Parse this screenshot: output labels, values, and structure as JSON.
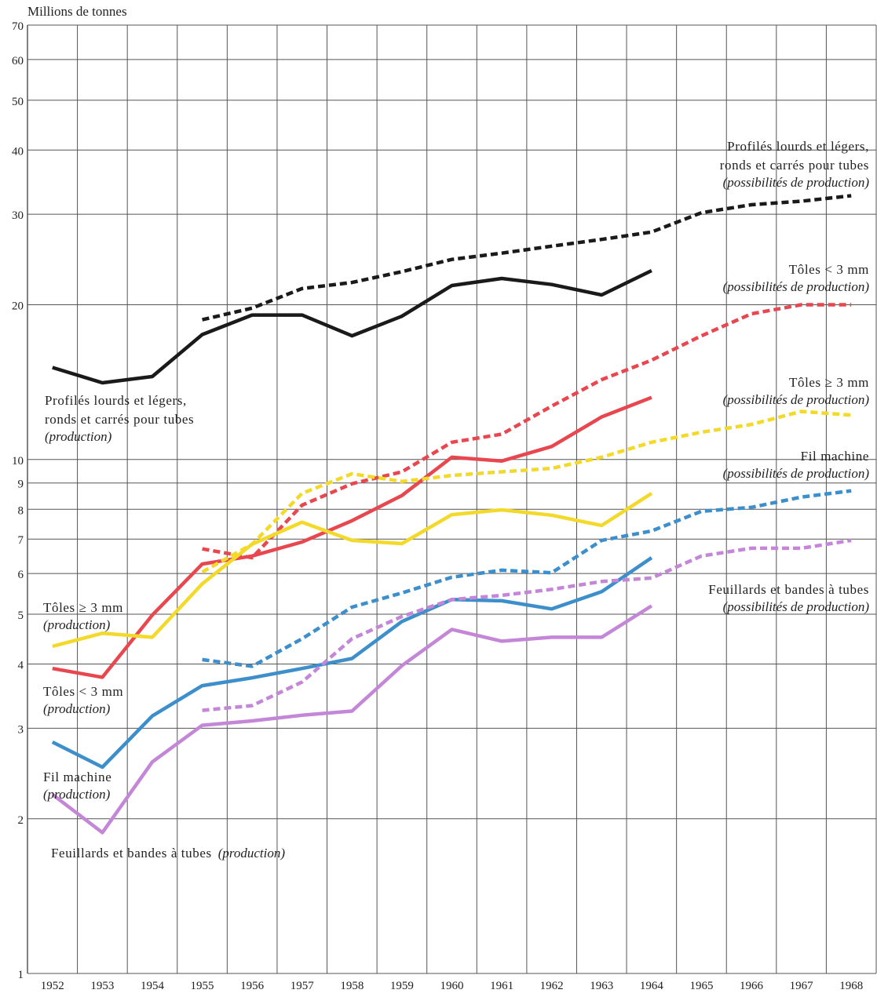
{
  "chart_data": {
    "type": "line",
    "y_label": "Millions de tonnes",
    "log_y": true,
    "grid": true,
    "ylim": [
      1,
      70
    ],
    "yticks": [
      1,
      2,
      3,
      4,
      5,
      6,
      7,
      8,
      9,
      10,
      20,
      30,
      40,
      50,
      60,
      70
    ],
    "categories": [
      "1952",
      "1953",
      "1954",
      "1955",
      "1956",
      "1957",
      "1958",
      "1959",
      "1960",
      "1961",
      "1962",
      "1963",
      "1964",
      "1965",
      "1966",
      "1967",
      "1968"
    ],
    "series": [
      {
        "color": "#1a1a1a",
        "dashed": false,
        "values": [
          15.1,
          14.1,
          14.5,
          17.5,
          19.1,
          19.1,
          17.4,
          19.0,
          21.8,
          22.5,
          21.9,
          20.9,
          23.3,
          null,
          null,
          null,
          null
        ]
      },
      {
        "color": "#1a1a1a",
        "dashed": true,
        "values": [
          null,
          null,
          null,
          18.7,
          19.7,
          21.5,
          22.1,
          23.2,
          24.5,
          25.2,
          26.0,
          26.8,
          27.7,
          30.2,
          31.3,
          31.8,
          32.6
        ]
      },
      {
        "color": "#e8474f",
        "dashed": false,
        "values": [
          3.92,
          3.77,
          4.98,
          6.26,
          6.49,
          6.91,
          7.6,
          8.51,
          10.1,
          9.93,
          10.6,
          12.1,
          13.2,
          null,
          null,
          null,
          null
        ]
      },
      {
        "color": "#e8474f",
        "dashed": true,
        "values": [
          null,
          null,
          null,
          6.7,
          6.44,
          8.15,
          8.97,
          9.46,
          10.8,
          11.2,
          12.7,
          14.3,
          15.6,
          17.4,
          19.2,
          20.0,
          20.0
        ]
      },
      {
        "color": "#f3d92a",
        "dashed": false,
        "values": [
          4.33,
          4.59,
          4.51,
          5.73,
          6.84,
          7.55,
          6.96,
          6.86,
          7.81,
          7.98,
          7.79,
          7.44,
          8.59,
          null,
          null,
          null,
          null
        ]
      },
      {
        "color": "#f3d92a",
        "dashed": true,
        "values": [
          null,
          null,
          null,
          6.04,
          6.84,
          8.59,
          9.38,
          9.06,
          9.31,
          9.46,
          9.61,
          10.1,
          10.8,
          11.3,
          11.7,
          12.4,
          12.2
        ]
      },
      {
        "color": "#3d8fcc",
        "dashed": false,
        "values": [
          2.82,
          2.52,
          3.17,
          3.63,
          3.76,
          3.92,
          4.1,
          4.84,
          5.34,
          5.31,
          5.12,
          5.53,
          6.44,
          null,
          null,
          null,
          null
        ]
      },
      {
        "color": "#3d8fcc",
        "dashed": true,
        "values": [
          null,
          null,
          null,
          4.08,
          3.96,
          4.48,
          5.16,
          5.5,
          5.9,
          6.09,
          6.02,
          6.96,
          7.26,
          7.93,
          8.07,
          8.45,
          8.69
        ]
      },
      {
        "color": "#c487d8",
        "dashed": false,
        "values": [
          2.23,
          1.88,
          2.58,
          3.04,
          3.1,
          3.18,
          3.24,
          3.97,
          4.67,
          4.43,
          4.51,
          4.51,
          5.19,
          null,
          null,
          null,
          null
        ]
      },
      {
        "color": "#c487d8",
        "dashed": true,
        "values": [
          null,
          null,
          null,
          3.25,
          3.32,
          3.69,
          4.48,
          4.95,
          5.34,
          5.44,
          5.59,
          5.79,
          5.88,
          6.49,
          6.72,
          6.72,
          6.96
        ]
      }
    ],
    "annotations": [
      {
        "lines": [
          "Profilés lourds et légers,",
          "ronds et carrés pour tubes"
        ],
        "note": "(production)"
      },
      {
        "lines": [
          "Profilés lourds et légers,",
          "ronds et carrés pour tubes"
        ],
        "note": "(possibilités de production)"
      },
      {
        "lines": [
          "Tôles < 3 mm"
        ],
        "note": "(production)"
      },
      {
        "lines": [
          "Tôles < 3 mm"
        ],
        "note": "(possibilités de production)"
      },
      {
        "lines": [
          "Tôles ≥ 3 mm"
        ],
        "note": "(production)"
      },
      {
        "lines": [
          "Tôles ≥ 3 mm"
        ],
        "note": "(possibilités de production)"
      },
      {
        "lines": [
          "Fil machine"
        ],
        "note": "(production)"
      },
      {
        "lines": [
          "Fil machine"
        ],
        "note": "(possibilités de production)"
      },
      {
        "lines": [
          "Feuillards et bandes à tubes"
        ],
        "note": "(production)"
      },
      {
        "lines": [
          "Feuillards et bandes à tubes"
        ],
        "note": "(possibilités de production)"
      }
    ]
  }
}
